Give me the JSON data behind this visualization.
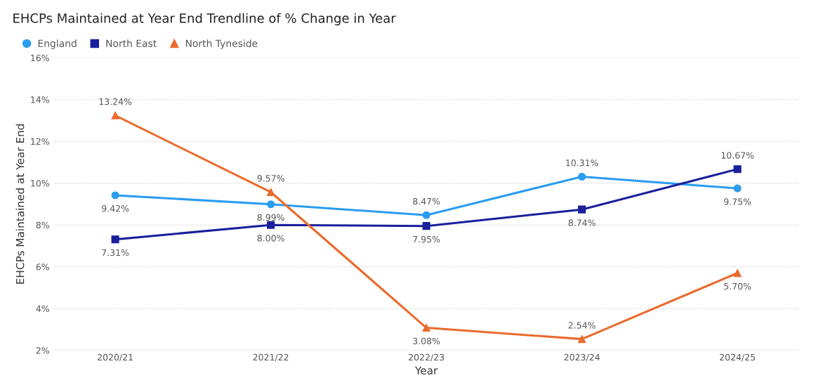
{
  "chart_data": {
    "type": "line",
    "title": "EHCPs Maintained at Year End Trendline of % Change in Year",
    "xlabel": "Year",
    "ylabel": "EHCPs Maintained at Year End",
    "categories": [
      "2020/21",
      "2021/22",
      "2022/23",
      "2023/24",
      "2024/25"
    ],
    "series": [
      {
        "name": "England",
        "color": "#2b9cf0",
        "marker": "circle",
        "values": [
          9.42,
          8.99,
          8.47,
          10.31,
          9.75
        ],
        "value_labels": [
          "9.42%",
          "8.99%",
          "8.47%",
          "10.31%",
          "9.75%"
        ]
      },
      {
        "name": "North East",
        "color": "#1a1f9c",
        "marker": "square",
        "values": [
          7.31,
          8.0,
          7.95,
          8.74,
          10.67
        ],
        "value_labels": [
          "7.31%",
          "8.00%",
          "7.95%",
          "8.74%",
          "10.67%"
        ]
      },
      {
        "name": "North Tyneside",
        "color": "#ea6b2d",
        "marker": "triangle",
        "values": [
          13.24,
          9.57,
          3.08,
          2.54,
          5.7
        ],
        "value_labels": [
          "13.24%",
          "9.57%",
          "3.08%",
          "2.54%",
          "5.70%"
        ]
      }
    ],
    "ylim": [
      2,
      16
    ],
    "yticks": [
      {
        "value": 2,
        "label": "2%"
      },
      {
        "value": 4,
        "label": "4%"
      },
      {
        "value": 6,
        "label": "6%"
      },
      {
        "value": 8,
        "label": "8%"
      },
      {
        "value": 10,
        "label": "10%"
      },
      {
        "value": 12,
        "label": "12%"
      },
      {
        "value": 14,
        "label": "14%"
      },
      {
        "value": 16,
        "label": "16%"
      }
    ],
    "grid": "y",
    "legend": "top left",
    "line_style": "solid"
  }
}
